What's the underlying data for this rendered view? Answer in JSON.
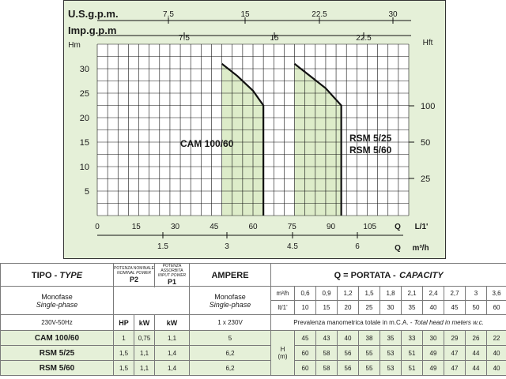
{
  "chart_data": {
    "type": "line",
    "top_axes": [
      {
        "label": "U.S.g.p.m.",
        "ticks": [
          "7.5",
          "15",
          "22.5",
          "30"
        ]
      },
      {
        "label": "Imp.g.p.m",
        "ticks": [
          "7.5",
          "15",
          "22.5"
        ]
      }
    ],
    "y_left": {
      "label": "Hm",
      "ticks": [
        "5",
        "10",
        "15",
        "20",
        "25",
        "30"
      ],
      "range": [
        0,
        35
      ]
    },
    "y_right": {
      "label": "Hft",
      "ticks": [
        "25",
        "50",
        "100"
      ]
    },
    "x_bottom": {
      "label": "Q",
      "unit": "L/1'",
      "ticks": [
        "0",
        "15",
        "30",
        "45",
        "60",
        "75",
        "90",
        "105"
      ],
      "range": [
        0,
        120
      ]
    },
    "x_bottom2": {
      "label": "Q",
      "unit": "m³/h",
      "ticks": [
        "1.5",
        "3",
        "4.5",
        "6"
      ]
    },
    "series": [
      {
        "name": "CAM 100/60",
        "x": [
          48,
          54,
          60,
          64,
          64
        ],
        "y": [
          31,
          28.5,
          25.5,
          22.5,
          0
        ]
      },
      {
        "name": "RSM 5/25",
        "x": [
          76,
          82,
          88,
          94,
          94
        ],
        "y": [
          31,
          28.5,
          26,
          22.5,
          0
        ]
      }
    ],
    "annotations": [
      "CAM 100/60",
      "RSM 5/25",
      "RSM 5/60"
    ],
    "grid": true,
    "background": "#e5f0d8"
  },
  "table": {
    "tipo": "TIPO",
    "tipo_en": "TYPE",
    "potenza_nominale": "POTENZA NOMINALE",
    "nominal_power": "NOMINAL POWER",
    "p2": "P2",
    "potenza_assorbita": "POTENZA ASSORBITA",
    "input_power": "INPUT POWER",
    "p1": "P1",
    "ampere": "AMPERE",
    "portata": "Q = PORTATA -",
    "capacity": "CAPACITY",
    "monofase": "Monofase",
    "single_phase": "Single-phase",
    "supply": "230V-50Hz",
    "hp": "HP",
    "kw": "kW",
    "kw1": "kW",
    "amp_supply": "1 x 230V",
    "m3h_label": "m³/h",
    "lt_label": "lt/1'",
    "q_m3h": [
      "0,6",
      "0,9",
      "1,2",
      "1,5",
      "1,8",
      "2,1",
      "2,4",
      "2,7",
      "3",
      "3,6"
    ],
    "q_lt": [
      "10",
      "15",
      "20",
      "25",
      "30",
      "35",
      "40",
      "45",
      "50",
      "60"
    ],
    "head_caption": "Prevalenza manometrica totale in m.C.A. -",
    "head_caption_en": "Total head in meters w.c.",
    "h_label": "H",
    "h_unit": "(m)",
    "rows": [
      {
        "model": "CAM 100/60",
        "hp": "1",
        "p2": "0,75",
        "p1": "1,1",
        "amp": "5",
        "h": [
          "45",
          "43",
          "40",
          "38",
          "35",
          "33",
          "30",
          "29",
          "26",
          "22"
        ]
      },
      {
        "model": "RSM 5/25",
        "hp": "1,5",
        "p2": "1,1",
        "p1": "1,4",
        "amp": "6,2",
        "h": [
          "60",
          "58",
          "56",
          "55",
          "53",
          "51",
          "49",
          "47",
          "44",
          "40"
        ]
      },
      {
        "model": "RSM 5/60",
        "hp": "1,5",
        "p2": "1,1",
        "p1": "1,4",
        "amp": "6,2",
        "h": [
          "60",
          "58",
          "56",
          "55",
          "53",
          "51",
          "49",
          "47",
          "44",
          "40"
        ]
      }
    ]
  }
}
